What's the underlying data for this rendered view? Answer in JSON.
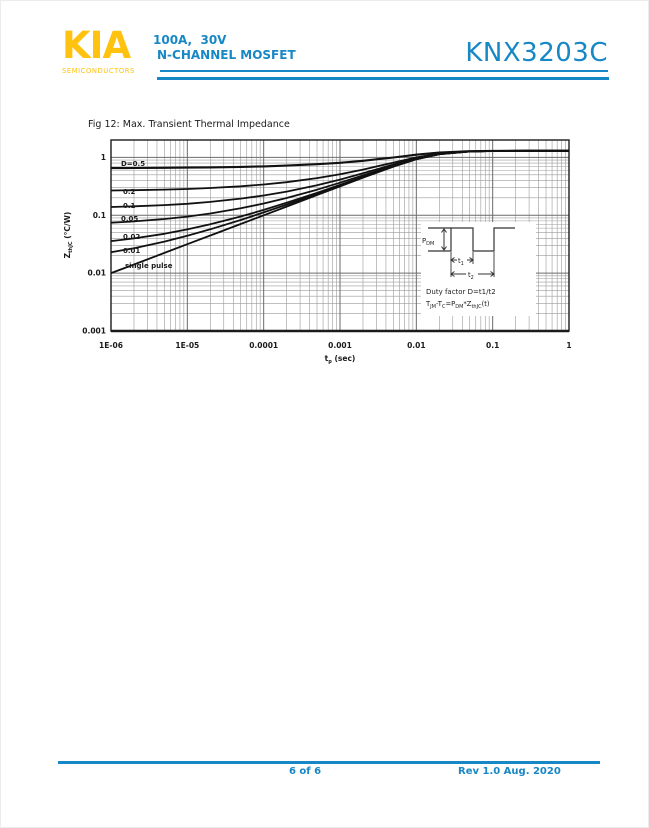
{
  "header": {
    "logo_text": "KIA",
    "logo_subtext": "SEMICONDUCTORS",
    "rating_line": "100A,  30V",
    "type_line": "N-CHANNEL MOSFET",
    "part_number": "KNX3203C"
  },
  "figure": {
    "title": "Fig 12: Max. Transient Thermal Impedance"
  },
  "footer": {
    "page_indicator": "6 of 6",
    "revision": "Rev 1.0 Aug. 2020"
  },
  "colors": {
    "brand_blue": "#1787C5",
    "brand_yellow": "#FFC20E",
    "grid_major": "#6b6b6b",
    "grid_minor": "#9b9b9b",
    "curve_black": "#111111"
  },
  "chart_data": {
    "type": "line",
    "title": "Fig 12: Max. Transient Thermal Impedance",
    "x_scale": "log",
    "y_scale": "log",
    "grid": true,
    "xlim": [
      1e-06,
      1
    ],
    "ylim": [
      0.001,
      2
    ],
    "xlabel_rich": [
      [
        "t",
        "p"
      ],
      [
        " (sec)",
        ""
      ]
    ],
    "ylabel_rich": [
      [
        "Z",
        "thJC"
      ],
      [
        " (°C/W)",
        ""
      ]
    ],
    "x_ticks": {
      "values": [
        1e-06,
        1e-05,
        0.0001,
        0.001,
        0.01,
        0.1,
        1
      ],
      "labels": [
        "1E-06",
        "1E-05",
        "0.0001",
        "0.001",
        "0.01",
        "0.1",
        "1"
      ]
    },
    "y_ticks": {
      "values": [
        1,
        0.1,
        0.01,
        0.001
      ],
      "labels": [
        "1",
        "0.1",
        "0.01",
        "0.001"
      ]
    },
    "rthjc_steady_state": 1.3,
    "x": [
      1e-06,
      2e-06,
      5e-06,
      1e-05,
      2e-05,
      5e-05,
      0.0001,
      0.0002,
      0.0005,
      0.001,
      0.002,
      0.005,
      0.01,
      0.02,
      0.05,
      0.1,
      0.3,
      1
    ],
    "series": [
      {
        "name": "D=0.5",
        "duty": 0.5,
        "values": [
          0.655,
          0.657,
          0.661,
          0.666,
          0.672,
          0.685,
          0.7,
          0.721,
          0.762,
          0.808,
          0.873,
          0.996,
          1.114,
          1.218,
          1.283,
          1.295,
          1.299,
          1.3
        ]
      },
      {
        "name": "0.2",
        "duty": 0.2,
        "values": [
          0.268,
          0.271,
          0.278,
          0.285,
          0.296,
          0.317,
          0.34,
          0.373,
          0.439,
          0.513,
          0.617,
          0.814,
          1.002,
          1.169,
          1.272,
          1.293,
          1.299,
          1.3
        ]
      },
      {
        "name": "0.1",
        "duty": 0.1,
        "values": [
          0.139,
          0.143,
          0.15,
          0.158,
          0.17,
          0.194,
          0.22,
          0.257,
          0.331,
          0.414,
          0.531,
          0.753,
          0.965,
          1.153,
          1.269,
          1.292,
          1.299,
          1.3
        ]
      },
      {
        "name": "0.05",
        "duty": 0.05,
        "values": [
          0.0745,
          0.0784,
          0.0862,
          0.095,
          0.1075,
          0.132,
          0.16,
          0.199,
          0.277,
          0.365,
          0.488,
          0.723,
          0.946,
          1.144,
          1.267,
          1.291,
          1.299,
          1.3
        ]
      },
      {
        "name": "0.02",
        "duty": 0.02,
        "values": [
          0.0358,
          0.0399,
          0.0479,
          0.057,
          0.0698,
          0.0953,
          0.124,
          0.165,
          0.245,
          0.336,
          0.463,
          0.705,
          0.935,
          1.139,
          1.266,
          1.291,
          1.299,
          1.3
        ]
      },
      {
        "name": "0.01",
        "duty": 0.01,
        "values": [
          0.0229,
          0.027,
          0.0351,
          0.0443,
          0.0573,
          0.083,
          0.112,
          0.153,
          0.234,
          0.326,
          0.454,
          0.698,
          0.931,
          1.138,
          1.266,
          1.291,
          1.299,
          1.3
        ]
      },
      {
        "name": "single pulse",
        "duty": 0,
        "values": [
          0.01,
          0.0141,
          0.0224,
          0.0316,
          0.0447,
          0.0707,
          0.1,
          0.141,
          0.224,
          0.316,
          0.446,
          0.692,
          0.928,
          1.136,
          1.265,
          1.291,
          1.299,
          1.3
        ]
      }
    ],
    "inset": {
      "pdm_rich": [
        [
          "P",
          "DM"
        ]
      ],
      "t1_rich": [
        [
          "t",
          "1"
        ]
      ],
      "t2_rich": [
        [
          "t",
          "2"
        ]
      ],
      "line1": "Duty factor D=t1/t2",
      "line2_rich": [
        [
          "T",
          "JM"
        ],
        [
          "-T",
          "C"
        ],
        [
          "=P",
          "DM"
        ],
        [
          "*Z",
          "thJC"
        ],
        [
          "(t)",
          ""
        ]
      ]
    }
  }
}
